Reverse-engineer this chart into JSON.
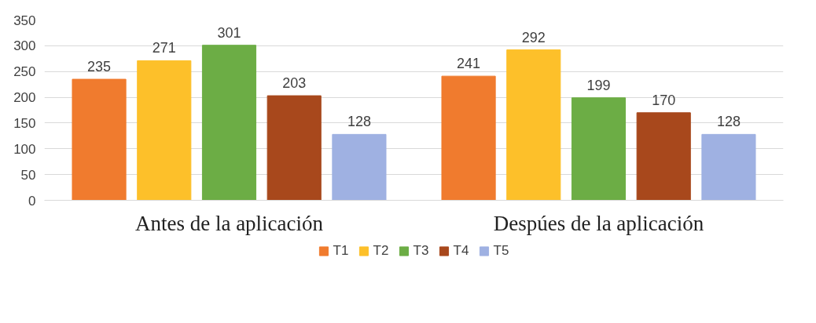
{
  "chart_data": {
    "type": "bar",
    "categories": [
      "Antes de la aplicación",
      "Despúes de la aplicación"
    ],
    "series": [
      {
        "name": "T1",
        "color": "#f07b2e",
        "values": [
          235,
          241
        ]
      },
      {
        "name": "T2",
        "color": "#fdc02a",
        "values": [
          271,
          292
        ]
      },
      {
        "name": "T3",
        "color": "#6cad45",
        "values": [
          301,
          199
        ]
      },
      {
        "name": "T4",
        "color": "#a8481c",
        "values": [
          203,
          170
        ]
      },
      {
        "name": "T5",
        "color": "#9fb1e2",
        "values": [
          128,
          128
        ]
      }
    ],
    "ylim": [
      0,
      350
    ],
    "yticks": [
      0,
      50,
      100,
      150,
      200,
      250,
      300,
      350
    ],
    "grid": "y",
    "legend": "bottom",
    "data_labels": true
  }
}
